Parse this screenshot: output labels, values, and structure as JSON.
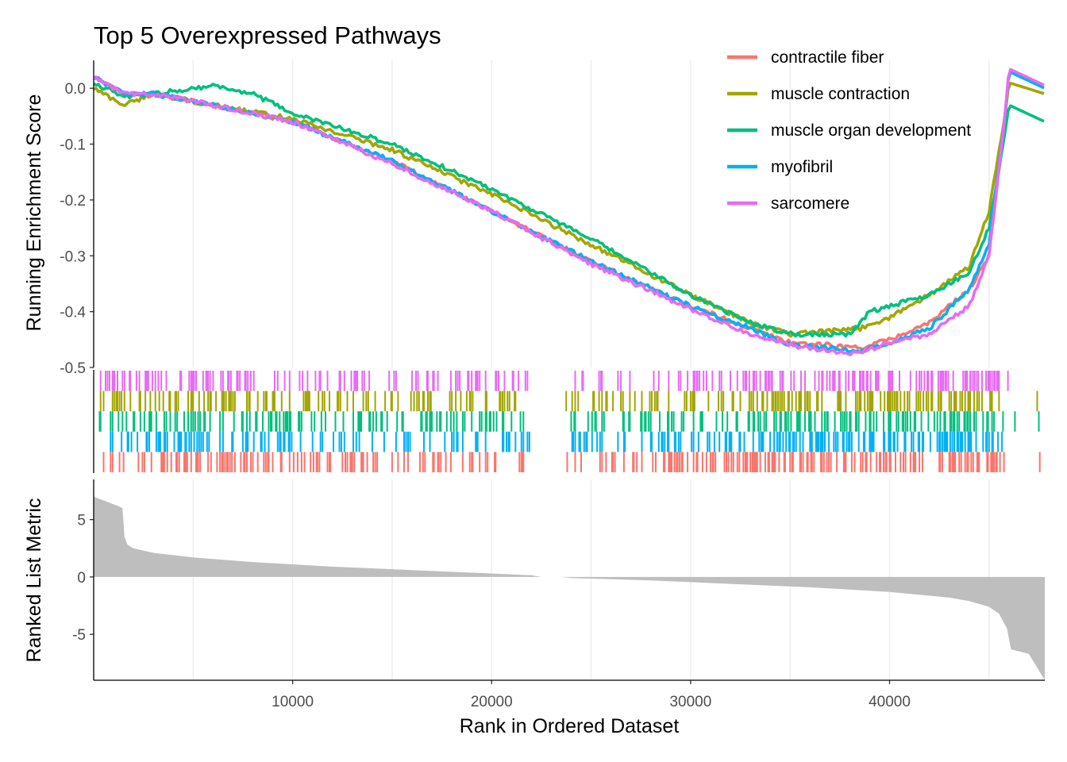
{
  "colors": {
    "contractile fiber": "#F8766D",
    "muscle contraction": "#A3A500",
    "muscle organ development": "#00BF7D",
    "myofibril": "#00B0F6",
    "sarcomere": "#E76BF3",
    "metric_fill": "#bebebe",
    "grid": "#ebebeb"
  },
  "chart_data": [
    {
      "type": "line",
      "title": "Top 5 Overexpressed Pathways",
      "xlabel": "",
      "ylabel": "Running Enrichment Score",
      "xlim": [
        1,
        47800
      ],
      "ylim": [
        -0.5,
        0.05
      ],
      "grid": "vertical",
      "legend": "top-right",
      "y_ticks": [
        0.0,
        -0.1,
        -0.2,
        -0.3,
        -0.4,
        -0.5
      ],
      "y_tick_labels": [
        "0.0",
        "-0.1",
        "-0.2",
        "-0.3",
        "-0.4",
        "-0.5"
      ],
      "series": [
        {
          "name": "contractile fiber",
          "x": [
            1,
            1500,
            3000,
            6000,
            10000,
            15000,
            20000,
            25000,
            30000,
            33000,
            35000,
            37000,
            38500,
            40000,
            42000,
            44000,
            45000,
            45800,
            46000,
            47800
          ],
          "y": [
            0.02,
            -0.01,
            -0.01,
            -0.03,
            -0.06,
            -0.13,
            -0.22,
            -0.31,
            -0.39,
            -0.43,
            -0.455,
            -0.46,
            -0.465,
            -0.45,
            -0.42,
            -0.36,
            -0.3,
            -0.05,
            0.03,
            0.0
          ]
        },
        {
          "name": "muscle contraction",
          "x": [
            1,
            1500,
            3000,
            6000,
            10000,
            15000,
            20000,
            25000,
            30000,
            33000,
            35000,
            37000,
            38500,
            40000,
            42000,
            44000,
            45000,
            45800,
            46000,
            47800
          ],
          "y": [
            0.0,
            -0.03,
            -0.01,
            -0.03,
            -0.055,
            -0.11,
            -0.19,
            -0.28,
            -0.37,
            -0.42,
            -0.44,
            -0.435,
            -0.43,
            -0.41,
            -0.37,
            -0.32,
            -0.22,
            -0.05,
            0.01,
            -0.01
          ]
        },
        {
          "name": "muscle organ development",
          "x": [
            1,
            1500,
            3000,
            6000,
            8000,
            10000,
            15000,
            20000,
            25000,
            30000,
            33000,
            35000,
            37000,
            38000,
            39000,
            40000,
            42000,
            44000,
            45000,
            45800,
            46000,
            47800
          ],
          "y": [
            0.01,
            -0.015,
            -0.01,
            0.005,
            -0.01,
            -0.045,
            -0.1,
            -0.18,
            -0.27,
            -0.37,
            -0.42,
            -0.44,
            -0.44,
            -0.44,
            -0.4,
            -0.39,
            -0.37,
            -0.33,
            -0.25,
            -0.08,
            -0.03,
            -0.06
          ]
        },
        {
          "name": "myofibril",
          "x": [
            1,
            1500,
            3000,
            6000,
            10000,
            15000,
            20000,
            25000,
            30000,
            33000,
            35000,
            37000,
            38500,
            40000,
            42000,
            44000,
            45000,
            45800,
            46000,
            47800
          ],
          "y": [
            0.02,
            -0.01,
            -0.01,
            -0.03,
            -0.06,
            -0.13,
            -0.22,
            -0.31,
            -0.39,
            -0.43,
            -0.46,
            -0.465,
            -0.47,
            -0.455,
            -0.43,
            -0.36,
            -0.28,
            -0.05,
            0.03,
            0.0
          ]
        },
        {
          "name": "sarcomere",
          "x": [
            1,
            1500,
            3000,
            6000,
            10000,
            15000,
            20000,
            25000,
            30000,
            33000,
            35000,
            37000,
            38500,
            40000,
            42000,
            44000,
            45000,
            45800,
            46000,
            47800
          ],
          "y": [
            0.02,
            -0.01,
            -0.01,
            -0.03,
            -0.06,
            -0.135,
            -0.22,
            -0.315,
            -0.395,
            -0.44,
            -0.46,
            -0.47,
            -0.475,
            -0.455,
            -0.44,
            -0.39,
            -0.3,
            -0.05,
            0.035,
            0.005
          ]
        }
      ]
    },
    {
      "type": "barcode",
      "xlim": [
        1,
        47800
      ],
      "rows": [
        "sarcomere",
        "muscle contraction",
        "muscle organ development",
        "myofibril",
        "contractile fiber"
      ],
      "hit_density": {
        "x": [
          0,
          1500,
          5000,
          10000,
          15000,
          20000,
          21000,
          22000,
          23500,
          24000,
          30000,
          34000,
          38000,
          42000,
          45000,
          46000,
          47800
        ],
        "density": [
          0.3,
          0.6,
          0.8,
          0.6,
          0.5,
          0.6,
          0.5,
          0.0,
          0.0,
          0.4,
          0.5,
          0.8,
          0.9,
          0.9,
          1.0,
          0.05,
          0.05
        ]
      }
    },
    {
      "type": "area",
      "xlabel": "Rank in Ordered Dataset",
      "ylabel": "Ranked List Metric",
      "xlim": [
        1,
        47800
      ],
      "ylim": [
        -9,
        8.5
      ],
      "x_ticks": [
        10000,
        20000,
        30000,
        40000
      ],
      "y_ticks": [
        5,
        0,
        -5
      ],
      "y_tick_labels": [
        "5",
        "0",
        "-5"
      ],
      "x": [
        1,
        1200,
        1450,
        1550,
        1700,
        2000,
        3000,
        5000,
        8000,
        12000,
        16000,
        20000,
        22000,
        22500,
        23500,
        24000,
        28000,
        32000,
        36000,
        40000,
        43000,
        44000,
        45000,
        45500,
        45900,
        46100,
        47000,
        47800
      ],
      "y": [
        7.0,
        6.2,
        6.0,
        3.5,
        2.8,
        2.5,
        2.1,
        1.7,
        1.3,
        0.9,
        0.6,
        0.3,
        0.15,
        0.0,
        0.0,
        -0.1,
        -0.3,
        -0.6,
        -0.9,
        -1.3,
        -1.8,
        -2.1,
        -2.6,
        -3.2,
        -4.5,
        -6.3,
        -6.7,
        -9.0
      ]
    }
  ]
}
